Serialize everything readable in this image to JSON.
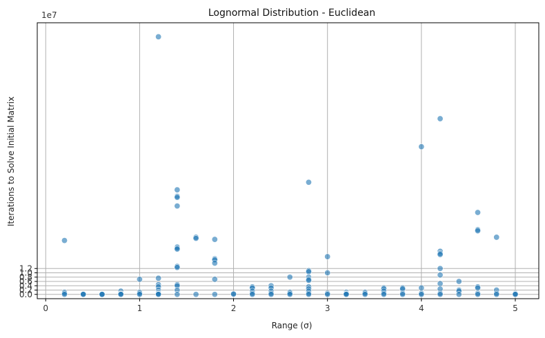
{
  "chart_data": {
    "type": "scatter",
    "title": "Lognormal Distribution - Euclidean",
    "xlabel": "Range (σ)",
    "ylabel": "Iterations to Solve Initial Matrix",
    "y_offset_label": "1e7",
    "xlim": [
      -0.09,
      5.25
    ],
    "ylim": [
      -0.2,
      12.6
    ],
    "y_unit_multiplier": 10000000,
    "x_ticks": [
      0,
      1,
      2,
      3,
      4,
      5
    ],
    "y_ticks": [
      0.0,
      0.2,
      0.4,
      0.6,
      0.8,
      1.0,
      1.2
    ],
    "grid": true,
    "legend": "none",
    "point_color": "#1f77b4",
    "points_x": [
      0.2,
      0.2,
      0.2,
      0.2,
      0.4,
      0.4,
      0.4,
      0.6,
      0.6,
      0.6,
      0.8,
      0.8,
      0.8,
      0.8,
      1.0,
      1.0,
      1.0,
      1.0,
      1.2,
      1.2,
      1.2,
      1.2,
      1.2,
      1.2,
      1.2,
      1.2,
      1.2,
      1.4,
      1.4,
      1.4,
      1.4,
      1.4,
      1.4,
      1.4,
      1.4,
      1.4,
      1.4,
      1.4,
      1.4,
      1.4,
      1.6,
      1.6,
      1.6,
      1.8,
      1.8,
      1.8,
      1.8,
      1.8,
      1.8,
      2.0,
      2.0,
      2.2,
      2.2,
      2.2,
      2.2,
      2.2,
      2.4,
      2.4,
      2.4,
      2.4,
      2.4,
      2.6,
      2.6,
      2.6,
      2.6,
      2.8,
      2.8,
      2.8,
      2.8,
      2.8,
      2.8,
      2.8,
      2.8,
      2.8,
      2.8,
      2.8,
      3.0,
      3.0,
      3.0,
      3.0,
      3.2,
      3.2,
      3.2,
      3.2,
      3.4,
      3.4,
      3.4,
      3.6,
      3.6,
      3.6,
      3.6,
      3.6,
      3.8,
      3.8,
      3.8,
      3.8,
      4.0,
      4.0,
      4.0,
      4.0,
      4.2,
      4.2,
      4.2,
      4.2,
      4.2,
      4.2,
      4.2,
      4.2,
      4.2,
      4.2,
      4.4,
      4.4,
      4.4,
      4.4,
      4.6,
      4.6,
      4.6,
      4.6,
      4.6,
      4.6,
      4.6,
      4.8,
      4.8,
      4.8,
      4.8,
      5.0,
      5.0,
      5.0
    ],
    "points_y": [
      2.5,
      0.1,
      0.05,
      0.0,
      0.0,
      0.02,
      0.0,
      0.0,
      0.01,
      0.0,
      0.15,
      0.05,
      0.02,
      0.0,
      0.7,
      0.1,
      0.05,
      0.0,
      11.95,
      0.75,
      0.45,
      0.35,
      0.2,
      0.1,
      0.05,
      0.02,
      0.0,
      4.85,
      4.55,
      4.5,
      4.1,
      2.2,
      2.15,
      2.1,
      1.3,
      1.25,
      0.45,
      0.4,
      0.2,
      0.0,
      2.65,
      2.6,
      0.0,
      2.55,
      1.65,
      1.6,
      1.45,
      0.7,
      0.0,
      0.0,
      0.02,
      0.35,
      0.3,
      0.15,
      0.05,
      0.0,
      0.4,
      0.3,
      0.15,
      0.05,
      0.0,
      0.8,
      0.1,
      0.05,
      0.0,
      5.2,
      1.1,
      1.05,
      0.8,
      0.7,
      0.65,
      0.35,
      0.25,
      0.15,
      0.05,
      0.0,
      1.75,
      1.0,
      0.05,
      0.0,
      0.1,
      0.05,
      0.02,
      0.0,
      0.1,
      0.05,
      0.0,
      0.3,
      0.25,
      0.15,
      0.05,
      0.0,
      0.3,
      0.25,
      0.05,
      0.0,
      6.85,
      0.3,
      0.05,
      0.0,
      8.15,
      2.0,
      1.9,
      1.85,
      1.2,
      0.9,
      0.5,
      0.25,
      0.05,
      0.0,
      0.6,
      0.2,
      0.15,
      0.0,
      3.8,
      3.0,
      2.95,
      0.35,
      0.3,
      0.05,
      0.0,
      2.65,
      0.2,
      0.05,
      0.0,
      0.05,
      0.02,
      0.0
    ]
  }
}
